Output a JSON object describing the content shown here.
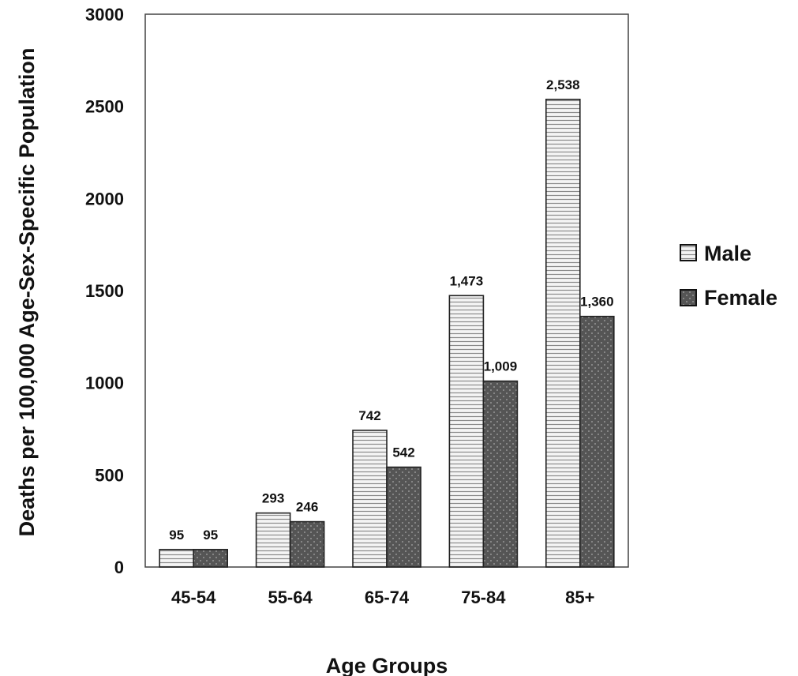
{
  "chart_data": {
    "type": "bar",
    "categories": [
      "45-54",
      "55-64",
      "65-74",
      "75-84",
      "85+"
    ],
    "series": [
      {
        "name": "Male",
        "values": [
          95,
          293,
          742,
          1473,
          2538
        ],
        "labels": [
          "95",
          "293",
          "742",
          "1,473",
          "2,538"
        ],
        "color": "#f2f2f2"
      },
      {
        "name": "Female",
        "values": [
          95,
          246,
          542,
          1009,
          1360
        ],
        "labels": [
          "95",
          "246",
          "542",
          "1,009",
          "1,360"
        ],
        "color": "#5a5a5a"
      }
    ],
    "xlabel": "Age Groups",
    "ylabel": "Deaths per 100,000 Age-Sex-Specific Population",
    "ylim": [
      0,
      3000
    ],
    "yticks": [
      0,
      500,
      1000,
      1500,
      2000,
      2500,
      3000
    ],
    "legend_position": "right",
    "grid": false
  }
}
